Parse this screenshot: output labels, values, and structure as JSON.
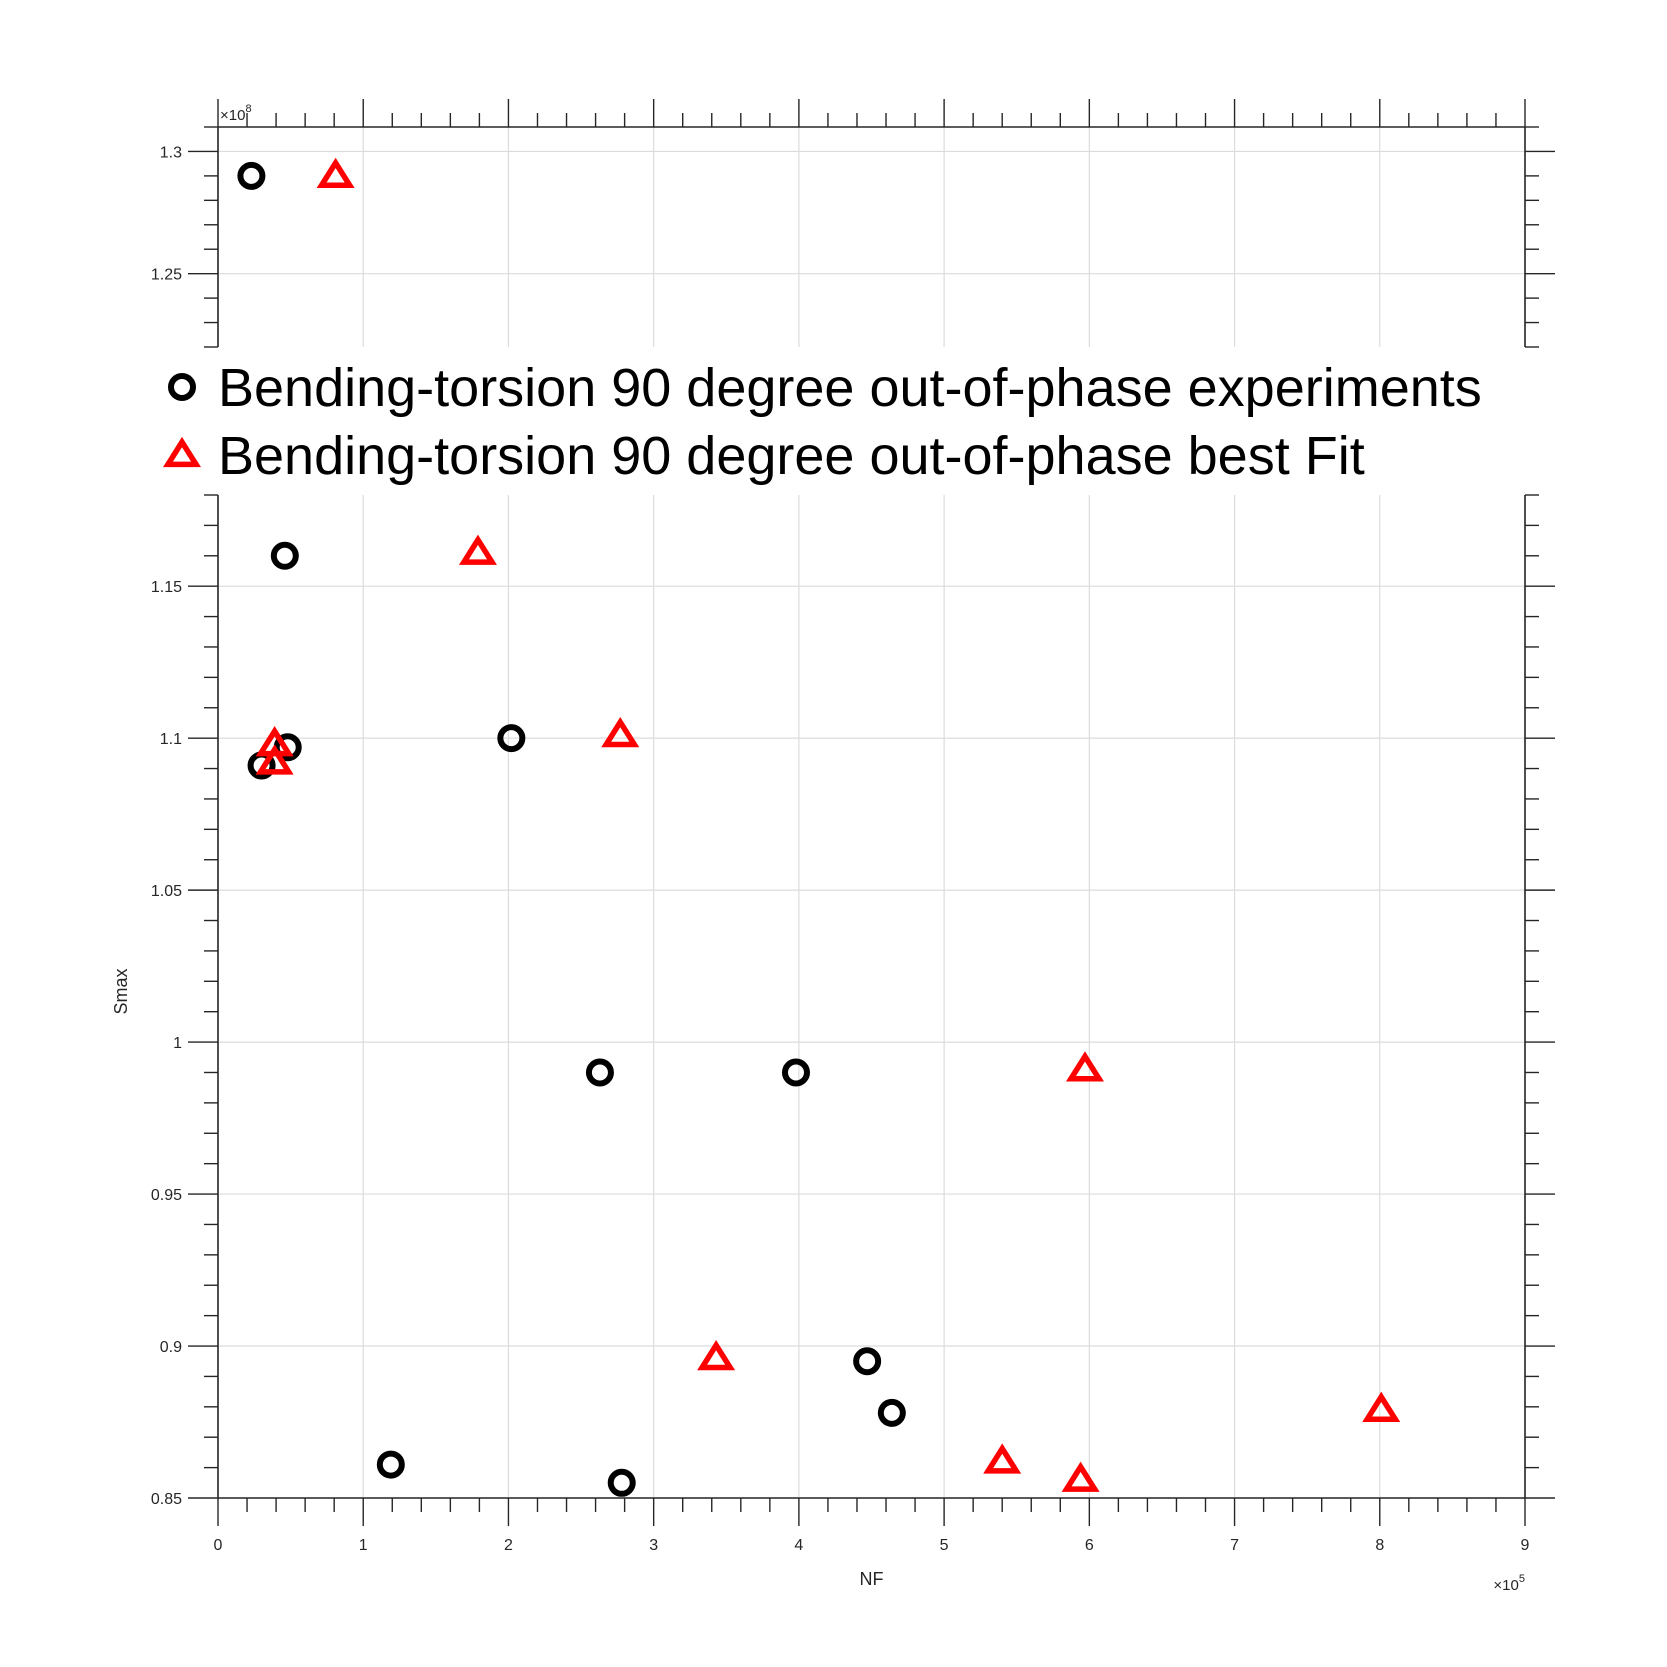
{
  "chart_data": {
    "type": "scatter",
    "title": "",
    "xlabel": "NF",
    "ylabel": "Smax",
    "x_exponent_label": "×10",
    "x_exponent": "5",
    "y_exponent_label": "×10",
    "y_exponent": "8",
    "xlim": [
      0,
      900000
    ],
    "ylim": [
      85000000,
      131000000
    ],
    "broken_axis": {
      "upper_range": [
        122000000,
        131000000
      ],
      "lower_range": [
        85000000,
        118000000
      ]
    },
    "grid": true,
    "legend_position": "top",
    "x_ticks": [
      {
        "value": 0,
        "label": "0"
      },
      {
        "value": 100000,
        "label": "1"
      },
      {
        "value": 200000,
        "label": "2"
      },
      {
        "value": 300000,
        "label": "3"
      },
      {
        "value": 400000,
        "label": "4"
      },
      {
        "value": 500000,
        "label": "5"
      },
      {
        "value": 600000,
        "label": "6"
      },
      {
        "value": 700000,
        "label": "7"
      },
      {
        "value": 800000,
        "label": "8"
      },
      {
        "value": 900000,
        "label": "9"
      }
    ],
    "y_ticks_upper": [
      {
        "value": 125000000,
        "label": "1.25"
      },
      {
        "value": 130000000,
        "label": "1.3"
      }
    ],
    "y_ticks_lower": [
      {
        "value": 85000000,
        "label": "0.85"
      },
      {
        "value": 90000000,
        "label": "0.9"
      },
      {
        "value": 95000000,
        "label": "0.95"
      },
      {
        "value": 100000000,
        "label": "1"
      },
      {
        "value": 105000000,
        "label": "1.05"
      },
      {
        "value": 110000000,
        "label": "1.1"
      },
      {
        "value": 115000000,
        "label": "1.15"
      }
    ],
    "series": [
      {
        "name": "Bending-torsion 90 degree out-of-phase experiments",
        "marker": "circle",
        "color": "#000000",
        "points": [
          {
            "x": 23000,
            "y": 129000000
          },
          {
            "x": 46000,
            "y": 116000000
          },
          {
            "x": 48000,
            "y": 109700000
          },
          {
            "x": 30000,
            "y": 109100000
          },
          {
            "x": 202000,
            "y": 110000000
          },
          {
            "x": 263000,
            "y": 99000000
          },
          {
            "x": 398000,
            "y": 99000000
          },
          {
            "x": 447000,
            "y": 89500000
          },
          {
            "x": 464000,
            "y": 87800000
          },
          {
            "x": 119000,
            "y": 86100000
          },
          {
            "x": 278000,
            "y": 85500000
          }
        ]
      },
      {
        "name": "Bending-torsion 90 degree out-of-phase best Fit",
        "marker": "triangle",
        "color": "#ff0000",
        "points": [
          {
            "x": 81000,
            "y": 129000000
          },
          {
            "x": 179000,
            "y": 116100000
          },
          {
            "x": 39000,
            "y": 109800000
          },
          {
            "x": 39000,
            "y": 109200000
          },
          {
            "x": 277000,
            "y": 110100000
          },
          {
            "x": 597000,
            "y": 99100000
          },
          {
            "x": 343000,
            "y": 89600000
          },
          {
            "x": 540000,
            "y": 86200000
          },
          {
            "x": 594000,
            "y": 85600000
          },
          {
            "x": 801000,
            "y": 87900000
          }
        ]
      }
    ]
  }
}
